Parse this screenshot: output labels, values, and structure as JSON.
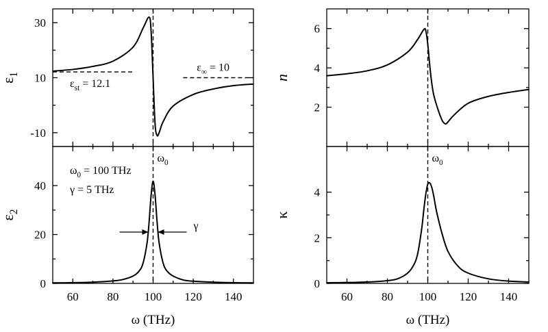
{
  "chart_data": [
    {
      "type": "line",
      "panel": "epsilon1",
      "xlabel": "",
      "ylabel_main": "ε",
      "ylabel_sub": "1",
      "xlim": [
        50,
        150
      ],
      "ylim": [
        -15,
        35
      ],
      "yticks": [
        -10,
        10,
        30
      ],
      "ytick_labels": [
        "-10",
        "10",
        "30"
      ],
      "x": [
        50,
        60,
        70,
        80,
        90,
        95,
        98,
        99,
        100,
        101,
        102,
        103,
        105,
        110,
        120,
        130,
        140,
        150
      ],
      "y": [
        12.4,
        13.0,
        14.1,
        16.0,
        21.1,
        28.0,
        32.0,
        27.0,
        10.0,
        -7.0,
        -11.0,
        -10.0,
        -6.0,
        -0.3,
        3.9,
        5.9,
        7.1,
        7.7
      ],
      "reference_lines": [
        {
          "label_main": "ε",
          "label_sub": "st",
          "label_rest": " = 12.1",
          "y": 12.1,
          "x_range": [
            50,
            90
          ]
        },
        {
          "label_main": "ε",
          "label_sub": "∞",
          "label_rest": " = 10",
          "y": 10,
          "x_range": [
            115,
            150
          ]
        }
      ],
      "vline_x": 100
    },
    {
      "type": "line",
      "panel": "epsilon2",
      "xlabel": "ω (THz)",
      "ylabel_main": "ε",
      "ylabel_sub": "2",
      "xlim": [
        50,
        150
      ],
      "ylim": [
        0,
        56
      ],
      "xticks": [
        60,
        80,
        100,
        120,
        140
      ],
      "xtick_labels": [
        "60",
        "80",
        "100",
        "120",
        "140"
      ],
      "yticks": [
        0,
        20,
        40
      ],
      "ytick_labels": [
        "0",
        "20",
        "40"
      ],
      "x": [
        50,
        60,
        70,
        80,
        85,
        90,
        93,
        95,
        97,
        98,
        99,
        100,
        101,
        102,
        103,
        105,
        107,
        110,
        115,
        120,
        130,
        140,
        150
      ],
      "y": [
        0.2,
        0.3,
        0.5,
        1.0,
        1.6,
        3.0,
        5.0,
        8.3,
        16.6,
        25.0,
        36.0,
        41.8,
        36.0,
        25.0,
        16.6,
        8.3,
        5.0,
        3.0,
        1.4,
        0.9,
        0.5,
        0.3,
        0.2
      ],
      "vline_x": 100,
      "vline_label_main": "ω",
      "vline_label_sub": "0",
      "params": [
        {
          "main": "ω",
          "sub": "0",
          "rest": " = 100 THz"
        },
        {
          "main": "γ",
          "sub": "",
          "rest": " = 5 THz"
        }
      ],
      "width_marker_label": "γ",
      "width_marker_y": 21
    },
    {
      "type": "line",
      "panel": "n",
      "xlabel": "",
      "ylabel": "n",
      "xlim": [
        50,
        150
      ],
      "ylim": [
        0,
        7
      ],
      "yticks": [
        2,
        4,
        6
      ],
      "ytick_labels": [
        "2",
        "4",
        "6"
      ],
      "x": [
        50,
        60,
        70,
        80,
        90,
        95,
        98,
        99,
        100,
        101,
        102,
        103,
        105,
        107,
        108,
        109,
        110,
        113,
        120,
        130,
        140,
        150
      ],
      "y": [
        3.6,
        3.7,
        3.85,
        4.15,
        4.8,
        5.45,
        5.95,
        5.9,
        5.2,
        4.1,
        3.2,
        2.6,
        1.9,
        1.35,
        1.2,
        1.15,
        1.25,
        1.6,
        2.2,
        2.55,
        2.75,
        2.9
      ],
      "vline_x": 100
    },
    {
      "type": "line",
      "panel": "kappa",
      "xlabel": "ω (THz)",
      "ylabel": "κ",
      "xlim": [
        50,
        150
      ],
      "ylim": [
        0,
        6
      ],
      "xticks": [
        60,
        80,
        100,
        120,
        140
      ],
      "xtick_labels": [
        "60",
        "80",
        "100",
        "120",
        "140"
      ],
      "yticks": [
        0,
        2,
        4
      ],
      "ytick_labels": [
        "0",
        "2",
        "4"
      ],
      "x": [
        50,
        60,
        70,
        80,
        85,
        90,
        93,
        95,
        97,
        98,
        99,
        100,
        101,
        102,
        103,
        104,
        105,
        107,
        110,
        115,
        120,
        130,
        140,
        150
      ],
      "y": [
        0.03,
        0.04,
        0.06,
        0.12,
        0.2,
        0.45,
        0.8,
        1.3,
        2.4,
        3.2,
        3.9,
        4.35,
        4.4,
        4.2,
        3.8,
        3.3,
        2.9,
        2.2,
        1.4,
        0.75,
        0.45,
        0.2,
        0.1,
        0.06
      ],
      "vline_x": 100,
      "vline_label_main": "ω",
      "vline_label_sub": "0"
    }
  ]
}
